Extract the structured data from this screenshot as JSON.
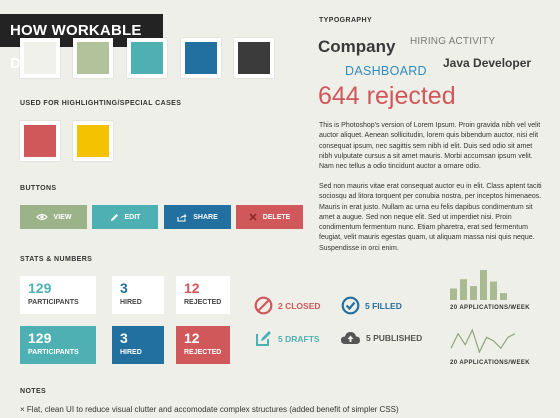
{
  "banner": {
    "title": "HOW WORKABLE DID IT"
  },
  "colors": {
    "palette": [
      "#f1f1ec",
      "#b2c29b",
      "#4fb0b4",
      "#2270a0",
      "#3b3b3b"
    ],
    "highlight": [
      "#d0575a",
      "#f5c200"
    ],
    "view": "#9cb38a",
    "edit": "#4fb0b4",
    "share": "#2270a0",
    "delete": "#d0575a",
    "text_dark": "#333333",
    "heading_gray": "#7a7a7a"
  },
  "sections": {
    "highlight_label": "USED FOR HIGHLIGHTING/SPECIAL CASES",
    "buttons_label": "BUTTONS",
    "stats_label": "STATS & NUMBERS",
    "typography_label": "TYPOGRAPHY",
    "notes_label": "NOTES"
  },
  "buttons": [
    {
      "label": "VIEW",
      "icon": "eye-icon"
    },
    {
      "label": "EDIT",
      "icon": "pencil-icon"
    },
    {
      "label": "SHARE",
      "icon": "share-icon"
    },
    {
      "label": "DELETE",
      "icon": "close-icon"
    }
  ],
  "stats_light": [
    {
      "value": "129",
      "label": "PARTICIPANTS"
    },
    {
      "value": "3",
      "label": "HIRED"
    },
    {
      "value": "12",
      "label": "REJECTED"
    }
  ],
  "stats_filled": [
    {
      "value": "129",
      "label": "PARTICIPANTS"
    },
    {
      "value": "3",
      "label": "HIRED"
    },
    {
      "value": "12",
      "label": "REJECTED"
    }
  ],
  "statuses": {
    "closed": {
      "label": "2 CLOSED",
      "icon": "prohibited-icon"
    },
    "filled": {
      "label": "5 FILLED",
      "icon": "check-circle-icon"
    },
    "drafts": {
      "label": "5 DRAFTS",
      "icon": "edit-icon"
    },
    "published": {
      "label": "5 PUBLISHED",
      "icon": "cloud-upload-icon"
    }
  },
  "sparklines": {
    "bar_caption": "20 APPLICATIONS/WEEK",
    "bar_values": [
      5,
      9,
      6,
      13,
      8,
      3
    ],
    "line_caption": "20 APPLICATIONS/WEEK",
    "line_values": [
      3,
      7,
      4,
      8,
      2,
      6,
      5,
      3,
      6,
      7
    ]
  },
  "typography": {
    "company": "Company",
    "hiring_activity": "HIRING ACTIVITY",
    "dashboard": "DASHBOARD",
    "java_developer": "Java Developer",
    "rejected": "644 rejected",
    "paragraph1": "This is Photoshop's version  of Lorem Ipsum. Proin gravida nibh vel velit auctor aliquet. Aenean sollicitudin, lorem quis bibendum auctor, nisi elit consequat ipsum, nec sagittis sem nibh id elit. Duis sed odio sit amet nibh vulputate cursus a sit amet mauris. Morbi accumsan ipsum velit. Nam nec tellus a odio tincidunt auctor a ornare odio.",
    "paragraph2": "Sed non  mauris vitae erat consequat auctor eu in elit. Class aptent taciti sociosqu ad litora torquent per conubia nostra, per inceptos himenaeos. Mauris in erat justo. Nullam ac urna eu felis dapibus condimentum sit amet a augue. Sed non neque elit. Sed ut imperdiet nisi. Proin condimentum fermentum nunc. Etiam pharetra, erat sed fermentum feugiat, velit mauris egestas quam, ut aliquam massa nisi quis neque. Suspendisse in orci enim."
  },
  "notes": {
    "bullet": "×",
    "item1": "Flat, clean UI to reduce visual clutter and accomodate complex structures (added benefit of simpler CSS)"
  }
}
